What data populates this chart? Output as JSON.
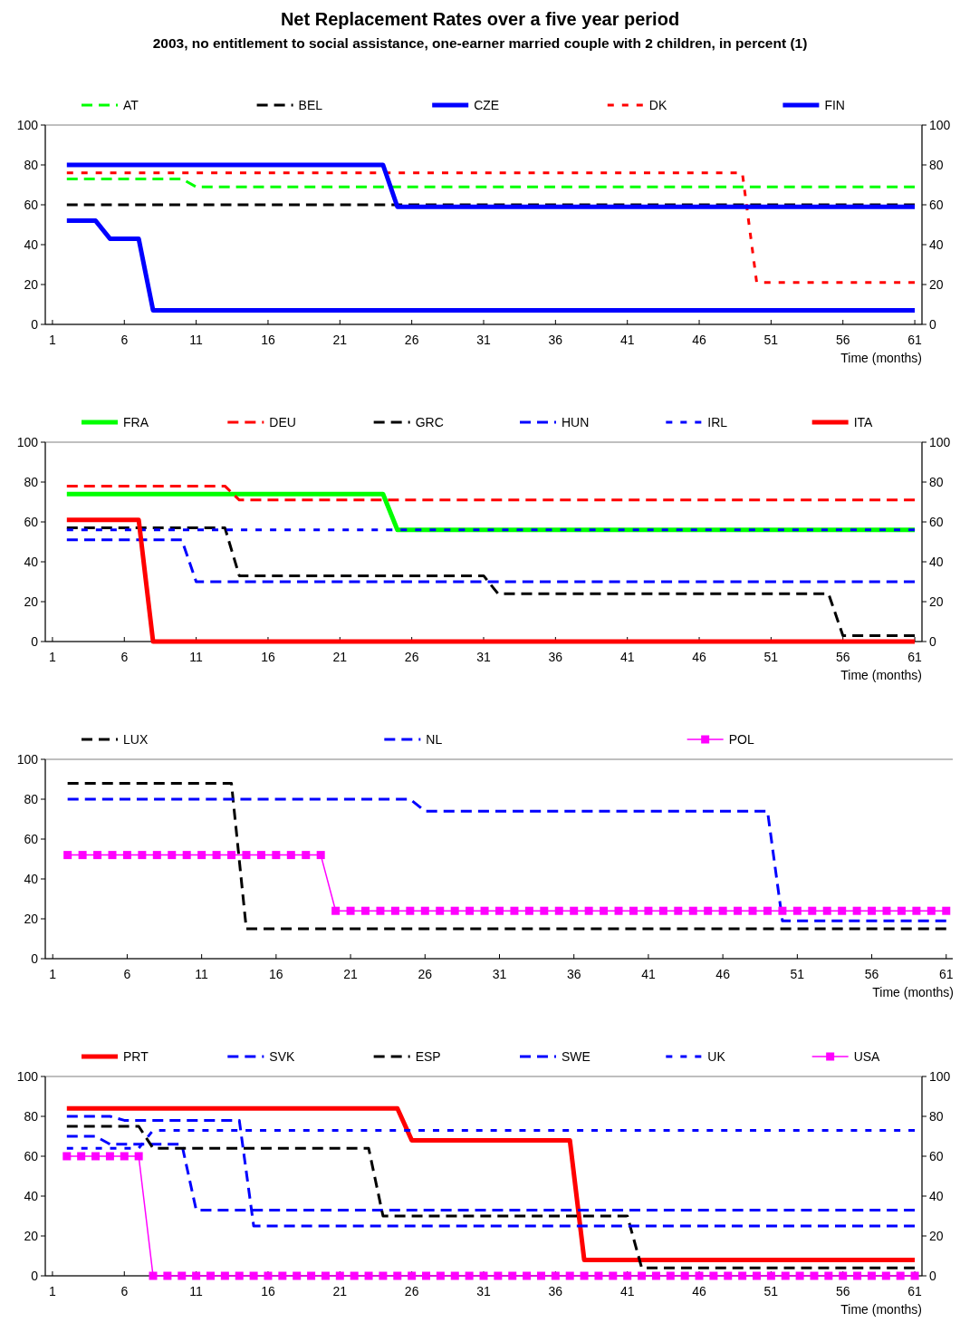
{
  "chart_data": [
    {
      "type": "line",
      "title": "Net Replacement Rates over a five year period",
      "subtitle": "2003, no entitlement to social assistance, one-earner married couple with 2 children, in percent (1)",
      "xlabel": "Time (months)",
      "xlim": [
        0.5,
        61.5
      ],
      "xticks": [
        1,
        6,
        11,
        16,
        21,
        26,
        31,
        36,
        41,
        46,
        51,
        56,
        61
      ],
      "ylim": [
        0,
        100
      ],
      "yticks": [
        0,
        20,
        40,
        60,
        80,
        100
      ],
      "y2lim": [
        0,
        100
      ],
      "y2ticks": [
        0,
        20,
        40,
        60,
        80,
        100
      ],
      "legend": "top",
      "series": [
        {
          "name": "AT",
          "color": "#00ff00",
          "line_style": "dashed",
          "x": [
            2,
            10,
            11,
            61
          ],
          "values": [
            73,
            73,
            69,
            69
          ]
        },
        {
          "name": "BEL",
          "color": "#000000",
          "line_style": "dashed",
          "x": [
            2,
            61
          ],
          "values": [
            60,
            60
          ]
        },
        {
          "name": "CZE",
          "color": "#0000ff",
          "line_style": "solid",
          "x": [
            2,
            4,
            5,
            7,
            8,
            61
          ],
          "values": [
            52,
            52,
            43,
            43,
            7,
            7
          ]
        },
        {
          "name": "DK",
          "color": "#ff0000",
          "line_style": "dotted",
          "x": [
            2,
            49,
            50,
            61
          ],
          "values": [
            76,
            76,
            21,
            21
          ]
        },
        {
          "name": "FIN",
          "color": "#0000ff",
          "line_style": "solid",
          "x": [
            2,
            24,
            25,
            61
          ],
          "values": [
            80,
            80,
            59,
            59
          ]
        }
      ]
    },
    {
      "type": "line",
      "xlabel": "Time (months)",
      "xlim": [
        0.5,
        61.5
      ],
      "xticks": [
        1,
        6,
        11,
        16,
        21,
        26,
        31,
        36,
        41,
        46,
        51,
        56,
        61
      ],
      "ylim": [
        0,
        100
      ],
      "yticks": [
        0,
        20,
        40,
        60,
        80,
        100
      ],
      "y2lim": [
        0,
        100
      ],
      "y2ticks": [
        0,
        20,
        40,
        60,
        80,
        100
      ],
      "legend": "top",
      "series": [
        {
          "name": "FRA",
          "color": "#00ff00",
          "line_style": "solid",
          "x": [
            2,
            24,
            25,
            61
          ],
          "values": [
            74,
            74,
            56,
            56
          ]
        },
        {
          "name": "DEU",
          "color": "#ff0000",
          "line_style": "dashed",
          "x": [
            2,
            13,
            14,
            61
          ],
          "values": [
            78,
            78,
            71,
            71
          ]
        },
        {
          "name": "GRC",
          "color": "#000000",
          "line_style": "dashed",
          "x": [
            2,
            13,
            14,
            31,
            32,
            55,
            56,
            61
          ],
          "values": [
            57,
            57,
            33,
            33,
            24,
            24,
            3,
            3
          ]
        },
        {
          "name": "HUN",
          "color": "#0000ff",
          "line_style": "dashed",
          "x": [
            2,
            10,
            11,
            61
          ],
          "values": [
            51,
            51,
            30,
            30
          ]
        },
        {
          "name": "IRL",
          "color": "#0000ff",
          "line_style": "dotted",
          "x": [
            2,
            61
          ],
          "values": [
            56,
            56
          ]
        },
        {
          "name": "ITA",
          "color": "#ff0000",
          "line_style": "solid",
          "x": [
            2,
            7,
            8,
            61
          ],
          "values": [
            61,
            61,
            0,
            0
          ]
        }
      ]
    },
    {
      "type": "line",
      "xlabel": "Time (months)",
      "xlim": [
        0.5,
        61.5
      ],
      "xticks": [
        1,
        6,
        11,
        16,
        21,
        26,
        31,
        36,
        41,
        46,
        51,
        56,
        61
      ],
      "ylim": [
        0,
        100
      ],
      "yticks": [
        0,
        20,
        40,
        60,
        80,
        100
      ],
      "legend": "top",
      "series": [
        {
          "name": "LUX",
          "color": "#000000",
          "line_style": "dashed",
          "x": [
            2,
            13,
            14,
            61
          ],
          "values": [
            88,
            88,
            15,
            15
          ]
        },
        {
          "name": "NL",
          "color": "#0000ff",
          "line_style": "dashed",
          "x": [
            2,
            25,
            26,
            49,
            50,
            61
          ],
          "values": [
            80,
            80,
            74,
            74,
            19,
            19
          ]
        },
        {
          "name": "POL",
          "color": "#ff00ff",
          "line_style": "solid",
          "marker": "square",
          "x": [
            2,
            3,
            4,
            5,
            6,
            7,
            8,
            9,
            10,
            11,
            12,
            13,
            14,
            15,
            16,
            17,
            18,
            19,
            20,
            21,
            22,
            23,
            24,
            25,
            26,
            27,
            28,
            29,
            30,
            31,
            32,
            33,
            34,
            35,
            36,
            37,
            38,
            39,
            40,
            41,
            42,
            43,
            44,
            45,
            46,
            47,
            48,
            49,
            50,
            51,
            52,
            53,
            54,
            55,
            56,
            57,
            58,
            59,
            60,
            61
          ],
          "values": [
            52,
            52,
            52,
            52,
            52,
            52,
            52,
            52,
            52,
            52,
            52,
            52,
            52,
            52,
            52,
            52,
            52,
            52,
            24,
            24,
            24,
            24,
            24,
            24,
            24,
            24,
            24,
            24,
            24,
            24,
            24,
            24,
            24,
            24,
            24,
            24,
            24,
            24,
            24,
            24,
            24,
            24,
            24,
            24,
            24,
            24,
            24,
            24,
            24,
            24,
            24,
            24,
            24,
            24,
            24,
            24,
            24,
            24,
            24,
            24
          ]
        }
      ]
    },
    {
      "type": "line",
      "xlabel": "Time (months)",
      "xlim": [
        0.5,
        61.5
      ],
      "xticks": [
        1,
        6,
        11,
        16,
        21,
        26,
        31,
        36,
        41,
        46,
        51,
        56,
        61
      ],
      "ylim": [
        0,
        100
      ],
      "yticks": [
        0,
        20,
        40,
        60,
        80,
        100
      ],
      "y2lim": [
        0,
        100
      ],
      "y2ticks": [
        0,
        20,
        40,
        60,
        80,
        100
      ],
      "legend": "top",
      "series": [
        {
          "name": "PRT",
          "color": "#ff0000",
          "line_style": "solid",
          "x": [
            2,
            25,
            26,
            37,
            38,
            61
          ],
          "values": [
            84,
            84,
            68,
            68,
            8,
            8
          ]
        },
        {
          "name": "SVK",
          "color": "#0000ff",
          "line_style": "dashed",
          "x": [
            2,
            4,
            5,
            10,
            11,
            61
          ],
          "values": [
            70,
            70,
            66,
            66,
            33,
            33
          ]
        },
        {
          "name": "ESP",
          "color": "#000000",
          "line_style": "dashed",
          "x": [
            2,
            7,
            8,
            23,
            24,
            41,
            42,
            61
          ],
          "values": [
            75,
            75,
            64,
            64,
            30,
            30,
            4,
            4
          ]
        },
        {
          "name": "SWE",
          "color": "#0000ff",
          "line_style": "dashed",
          "x": [
            2,
            5,
            6,
            14,
            15,
            61
          ],
          "values": [
            80,
            80,
            78,
            78,
            25,
            25
          ]
        },
        {
          "name": "UK",
          "color": "#0000ff",
          "line_style": "dotted",
          "x": [
            2,
            7,
            8,
            61
          ],
          "values": [
            64,
            64,
            73,
            73
          ]
        },
        {
          "name": "USA",
          "color": "#ff00ff",
          "line_style": "solid",
          "marker": "square",
          "x": [
            2,
            3,
            4,
            5,
            6,
            7,
            8,
            9,
            10,
            11,
            12,
            13,
            14,
            15,
            16,
            17,
            18,
            19,
            20,
            21,
            22,
            23,
            24,
            25,
            26,
            27,
            28,
            29,
            30,
            31,
            32,
            33,
            34,
            35,
            36,
            37,
            38,
            39,
            40,
            41,
            42,
            43,
            44,
            45,
            46,
            47,
            48,
            49,
            50,
            51,
            52,
            53,
            54,
            55,
            56,
            57,
            58,
            59,
            60,
            61
          ],
          "values": [
            60,
            60,
            60,
            60,
            60,
            60,
            0,
            0,
            0,
            0,
            0,
            0,
            0,
            0,
            0,
            0,
            0,
            0,
            0,
            0,
            0,
            0,
            0,
            0,
            0,
            0,
            0,
            0,
            0,
            0,
            0,
            0,
            0,
            0,
            0,
            0,
            0,
            0,
            0,
            0,
            0,
            0,
            0,
            0,
            0,
            0,
            0,
            0,
            0,
            0,
            0,
            0,
            0,
            0,
            0,
            0,
            0,
            0,
            0,
            0
          ]
        }
      ]
    }
  ]
}
